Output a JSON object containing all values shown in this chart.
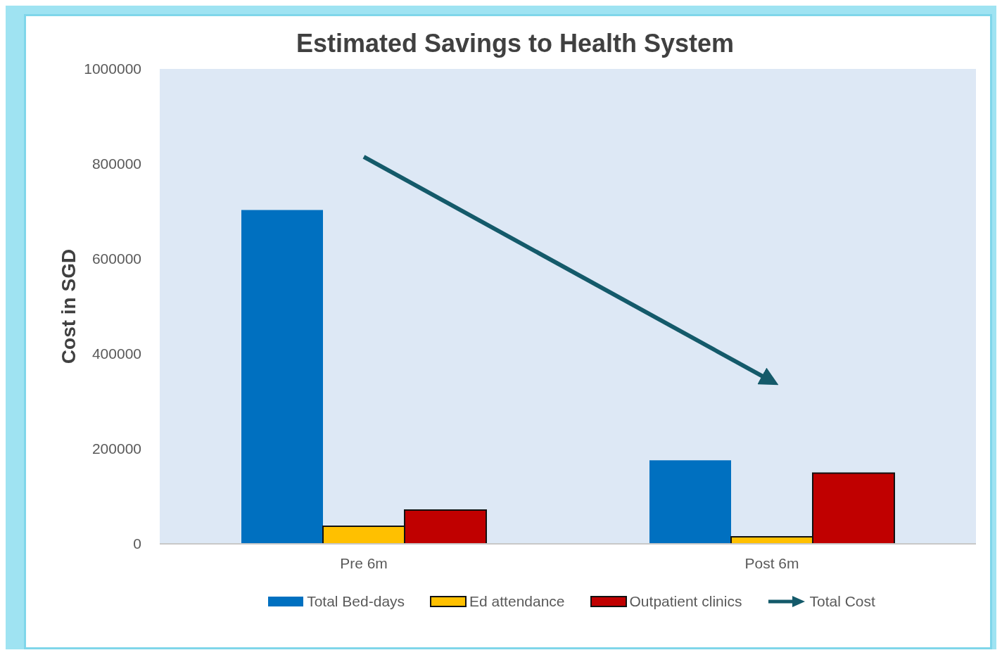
{
  "chart_data": {
    "type": "bar",
    "title": "Estimated Savings to Health System",
    "ylabel": "Cost in SGD",
    "categories": [
      "Pre 6m",
      "Post 6m"
    ],
    "series": [
      {
        "name": "Total Bed-days",
        "color": "#0070c0",
        "values": [
          703000,
          176000
        ]
      },
      {
        "name": "Ed attendance",
        "color": "#ffc000",
        "values": [
          37000,
          15000
        ]
      },
      {
        "name": "Outpatient clinics",
        "color": "#c00000",
        "values": [
          71000,
          149000
        ]
      },
      {
        "name": "Total Cost",
        "type": "line",
        "color": "#145a6a",
        "values": [
          815000,
          342000
        ]
      }
    ],
    "ylim": [
      0,
      1000000
    ],
    "yticks": [
      0,
      200000,
      400000,
      600000,
      800000,
      1000000
    ],
    "grid": false,
    "legend": "bottom",
    "marker": "none"
  }
}
